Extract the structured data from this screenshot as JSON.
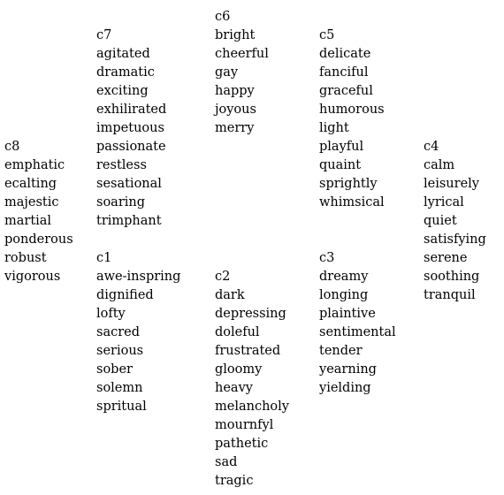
{
  "clusters": [
    {
      "id": "c6",
      "label": "c6",
      "words": [
        "bright",
        "cheerful",
        "gay",
        "happy",
        "joyous",
        "merry"
      ]
    },
    {
      "id": "c7",
      "label": "c7",
      "words": [
        "agitated",
        "dramatic",
        "exciting",
        "exhilirated",
        "impetuous",
        "passionate",
        "restless",
        "sesational",
        "soaring",
        "trimphant"
      ]
    },
    {
      "id": "c5",
      "label": "c5",
      "words": [
        "delicate",
        "fanciful",
        "graceful",
        "humorous",
        "light",
        "playful",
        "quaint",
        "sprightly",
        "whimsical"
      ]
    },
    {
      "id": "c8",
      "label": "c8",
      "words": [
        "emphatic",
        "ecalting",
        "majestic",
        "martial",
        "ponderous",
        "robust",
        "vigorous"
      ]
    },
    {
      "id": "c4",
      "label": "c4",
      "words": [
        "calm",
        "leisurely",
        "lyrical",
        "quiet",
        "satisfying",
        "serene",
        "soothing",
        "tranquil"
      ]
    },
    {
      "id": "c1",
      "label": "c1",
      "words": [
        "awe-inspring",
        "dignified",
        "lofty",
        "sacred",
        "serious",
        "sober",
        "solemn",
        "spritual"
      ]
    },
    {
      "id": "c3",
      "label": "c3",
      "words": [
        "dreamy",
        "longing",
        "plaintive",
        "sentimental",
        "tender",
        "yearning",
        "yielding"
      ]
    },
    {
      "id": "c2",
      "label": "c2",
      "words": [
        "dark",
        "depressing",
        "doleful",
        "frustrated",
        "gloomy",
        "heavy",
        "melancholy",
        "mournfyl",
        "pathetic",
        "sad",
        "tragic"
      ]
    }
  ]
}
